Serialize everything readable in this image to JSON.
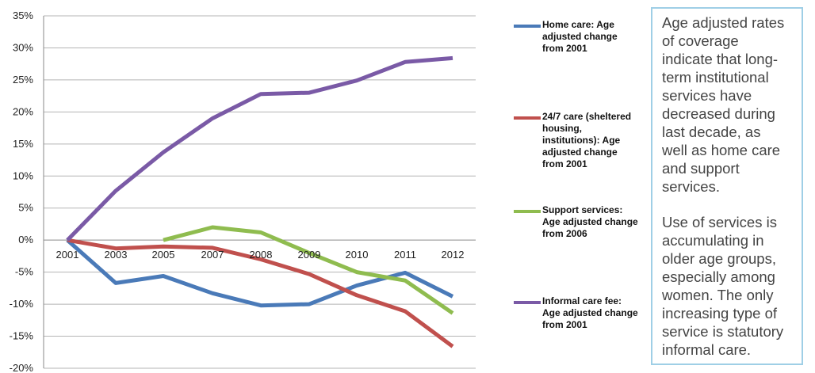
{
  "chart_data": {
    "type": "line",
    "title": "",
    "xlabel": "",
    "ylabel": "",
    "x": [
      "2001",
      "2003",
      "2005",
      "2007",
      "2008",
      "2009",
      "2010",
      "2011",
      "2012"
    ],
    "y_ticks": [
      "35%",
      "30%",
      "25%",
      "20%",
      "15%",
      "10%",
      "5%",
      "0%",
      "-5%",
      "-10%",
      "-15%",
      "-20%"
    ],
    "ylim": [
      -20,
      35
    ],
    "grid": true,
    "legend_position": "right",
    "series": [
      {
        "name": "Home care: Age adjusted change from 2001",
        "color": "#4a7ab8",
        "values": [
          0,
          -6.7,
          -5.6,
          -8.3,
          -10.2,
          -10,
          -7.1,
          -5.1,
          -8.8
        ]
      },
      {
        "name": "24/7 care (sheltered housing, institutions): Age adjusted change from 2001",
        "color": "#c0504d",
        "values": [
          0,
          -1.3,
          -1,
          -1.2,
          -3,
          -5.3,
          -8.6,
          -11.1,
          -16.6
        ]
      },
      {
        "name": "Support services: Age adjusted change from 2006",
        "color": "#8fbc4f",
        "values": [
          null,
          null,
          0,
          2,
          1.2,
          -2,
          -5,
          -6.3,
          -11.4
        ]
      },
      {
        "name": "Informal care fee: Age adjusted change from 2001",
        "color": "#7a5aa6",
        "values": [
          0,
          7.7,
          13.7,
          19,
          22.8,
          23,
          24.9,
          27.8,
          28.4
        ]
      }
    ]
  },
  "legend_lines": [
    [
      "Home care: Age",
      "adjusted change",
      "from 2001"
    ],
    [
      "24/7 care (sheltered",
      "housing,",
      "institutions): Age",
      "adjusted change",
      "from 2001"
    ],
    [
      "Support services:",
      "Age adjusted change",
      "from 2006"
    ],
    [
      "Informal care fee:",
      "Age adjusted change",
      "from 2001"
    ]
  ],
  "note": {
    "paragraph1": [
      "Age adjusted rates",
      "of coverage",
      "indicate that long-",
      "term institutional",
      "services have",
      "decreased during",
      "last decade, as",
      "well as home care",
      "and support",
      "services."
    ],
    "paragraph2": [
      "Use of services is",
      "accumulating in",
      "older age groups,",
      "especially among",
      "women. The only",
      "increasing type of",
      "service is statutory",
      "informal care."
    ]
  }
}
